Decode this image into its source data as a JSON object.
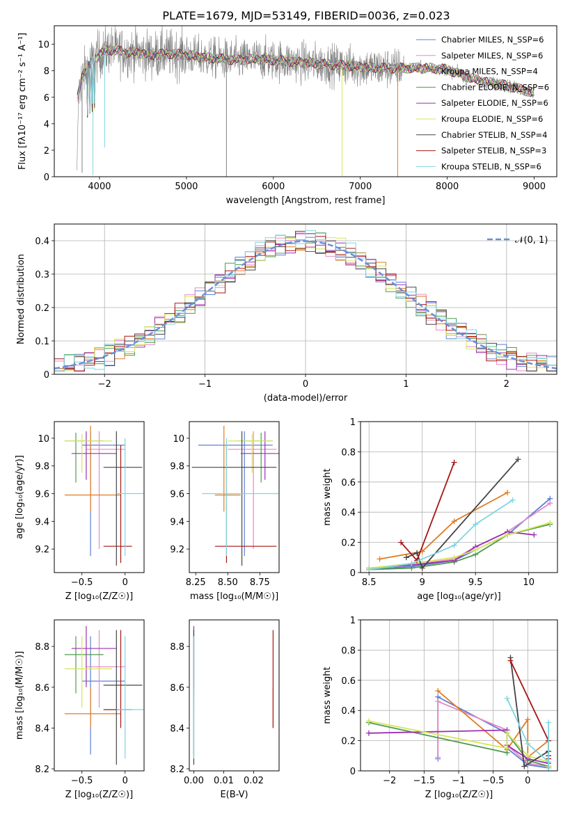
{
  "figure": {
    "title": "PLATE=1679, MJD=53149, FIBERID=0036, z=0.023"
  },
  "chart_data": [
    {
      "id": "spectrum",
      "type": "line",
      "xlabel": "wavelength [Angstrom, rest frame]",
      "ylabel": "Flux [fλ10⁻¹⁷ erg cm⁻² s⁻¹ A⁻¹]",
      "xlim": [
        3480,
        9260
      ],
      "ylim": [
        0,
        11.4
      ],
      "xticks": [
        4000,
        5000,
        6000,
        7000,
        8000,
        9000
      ],
      "yticks": [
        0,
        2,
        4,
        6,
        8,
        10
      ],
      "legend_position": "upper-right",
      "data_color": "#808080",
      "continuum": {
        "x": [
          3740,
          3800,
          3900,
          4000,
          4100,
          4200,
          4300,
          4400,
          4500,
          4600,
          4800,
          5000,
          5200,
          5400,
          5600,
          5800,
          6000,
          6200,
          6400,
          6600,
          6800,
          7000,
          7200,
          7400,
          7600,
          7800,
          8000,
          8200,
          8400,
          8600,
          8800,
          9000
        ],
        "y": [
          5.8,
          7.6,
          8.6,
          9.2,
          9.6,
          9.5,
          9.4,
          9.4,
          9.3,
          9.2,
          9.3,
          9.2,
          9.0,
          8.9,
          8.8,
          8.9,
          8.8,
          8.7,
          8.6,
          8.5,
          8.4,
          8.3,
          8.2,
          8.2,
          8.2,
          8.2,
          8.1,
          7.6,
          7.2,
          7.0,
          6.7,
          6.3
        ]
      },
      "models": [
        {
          "name": "Chabrier MILES, N_SSP=6",
          "color": "#5b7fd6"
        },
        {
          "name": "Salpeter MILES, N_SSP=6",
          "color": "#e58ac6"
        },
        {
          "name": "Kroupa MILES, N_SSP=4",
          "color": "#e07b20"
        },
        {
          "name": "Chabrier ELODIE, N_SSP=6",
          "color": "#4e9a4e"
        },
        {
          "name": "Salpeter ELODIE, N_SSP=6",
          "color": "#9b30b0"
        },
        {
          "name": "Kroupa ELODIE, N_SSP=6",
          "color": "#d6e65a"
        },
        {
          "name": "Chabrier STELIB, N_SSP=4",
          "color": "#444444"
        },
        {
          "name": "Salpeter STELIB, N_SSP=3",
          "color": "#a51515"
        },
        {
          "name": "Kroupa STELIB, N_SSP=6",
          "color": "#7fd6e0"
        }
      ]
    },
    {
      "id": "residuals",
      "type": "line",
      "xlabel": "(data-model)/error",
      "ylabel": "Normed distribution",
      "xlim": [
        -2.5,
        2.5
      ],
      "ylim": [
        0,
        0.45
      ],
      "xticks": [
        -2,
        -1,
        0,
        1,
        2
      ],
      "yticks": [
        0.0,
        0.1,
        0.2,
        0.3,
        0.4
      ],
      "grid": true,
      "legend": [
        {
          "name": "𝒩(0, 1)",
          "color": "#6a8fd8",
          "style": "dashed"
        }
      ],
      "bin_width": 0.1
    },
    {
      "id": "age-vs-z",
      "type": "scatter",
      "xlabel": "Z [log₁₀(Z/Z☉)]",
      "ylabel": "age  [log₁₀(age/yr)]",
      "xlim": [
        -0.82,
        0.22
      ],
      "ylim": [
        9.03,
        10.12
      ],
      "xticks": [
        -0.5,
        0.0
      ],
      "yticks": [
        9.2,
        9.4,
        9.6,
        9.8,
        10.0
      ],
      "points": [
        {
          "color": "#5b7fd6",
          "x": -0.4,
          "xlo": -0.5,
          "xhi": 0.0,
          "y": 9.95,
          "ylo": 9.15,
          "yhi": 10.05
        },
        {
          "color": "#e58ac6",
          "x": -0.3,
          "xlo": -0.45,
          "xhi": 0.0,
          "y": 9.92,
          "ylo": 9.2,
          "yhi": 10.05
        },
        {
          "color": "#e07b20",
          "x": -0.4,
          "xlo": -0.7,
          "xhi": -0.05,
          "y": 9.59,
          "ylo": 9.47,
          "yhi": 10.09
        },
        {
          "color": "#4e9a4e",
          "x": -0.57,
          "xlo": -0.7,
          "xhi": -0.25,
          "y": 9.98,
          "ylo": 9.68,
          "yhi": 10.04
        },
        {
          "color": "#9b30b0",
          "x": -0.45,
          "xlo": -0.62,
          "xhi": -0.1,
          "y": 9.89,
          "ylo": 9.7,
          "yhi": 10.05
        },
        {
          "color": "#d6e65a",
          "x": -0.5,
          "xlo": -0.7,
          "xhi": -0.15,
          "y": 9.98,
          "ylo": 9.75,
          "yhi": 10.03
        },
        {
          "color": "#444444",
          "x": -0.1,
          "xlo": -0.25,
          "xhi": 0.2,
          "y": 9.79,
          "ylo": 9.08,
          "yhi": 10.05
        },
        {
          "color": "#a51515",
          "x": -0.05,
          "xlo": -0.25,
          "xhi": 0.08,
          "y": 9.22,
          "ylo": 9.1,
          "yhi": 9.95
        },
        {
          "color": "#7fd6e0",
          "x": 0.0,
          "xlo": -0.1,
          "xhi": 0.22,
          "y": 9.6,
          "ylo": 9.15,
          "yhi": 10.0
        }
      ]
    },
    {
      "id": "age-vs-mass",
      "type": "scatter",
      "xlabel": "mass [log₁₀(M/M☉)]",
      "ylabel": "",
      "xlim": [
        8.2,
        8.9
      ],
      "ylim": [
        9.03,
        10.12
      ],
      "xticks": [
        8.25,
        8.5,
        8.75
      ],
      "xtick_labels": [
        "8.25",
        "8.50",
        "8.75"
      ],
      "yticks": [
        9.2,
        9.4,
        9.6,
        9.8,
        10.0
      ],
      "points": [
        {
          "color": "#5b7fd6",
          "x": 8.63,
          "xlo": 8.27,
          "xhi": 8.85,
          "y": 9.95,
          "ylo": 9.15,
          "yhi": 10.05
        },
        {
          "color": "#e58ac6",
          "x": 8.7,
          "xlo": 8.5,
          "xhi": 8.88,
          "y": 9.92,
          "ylo": 9.2,
          "yhi": 10.05
        },
        {
          "color": "#e07b20",
          "x": 8.47,
          "xlo": 8.4,
          "xhi": 8.6,
          "y": 9.59,
          "ylo": 9.47,
          "yhi": 10.09
        },
        {
          "color": "#4e9a4e",
          "x": 8.76,
          "xlo": 8.57,
          "xhi": 8.85,
          "y": 9.98,
          "ylo": 9.68,
          "yhi": 10.04
        },
        {
          "color": "#9b30b0",
          "x": 8.79,
          "xlo": 8.6,
          "xhi": 8.9,
          "y": 9.89,
          "ylo": 9.7,
          "yhi": 10.05
        },
        {
          "color": "#d6e65a",
          "x": 8.69,
          "xlo": 8.5,
          "xhi": 8.85,
          "y": 9.98,
          "ylo": 9.75,
          "yhi": 10.03
        },
        {
          "color": "#444444",
          "x": 8.61,
          "xlo": 8.22,
          "xhi": 8.88,
          "y": 9.79,
          "ylo": 9.08,
          "yhi": 10.05
        },
        {
          "color": "#a51515",
          "x": 8.49,
          "xlo": 8.4,
          "xhi": 8.88,
          "y": 9.22,
          "ylo": 9.1,
          "yhi": 9.95
        },
        {
          "color": "#7fd6e0",
          "x": 8.49,
          "xlo": 8.3,
          "xhi": 8.9,
          "y": 9.6,
          "ylo": 9.15,
          "yhi": 10.0
        }
      ]
    },
    {
      "id": "weight-vs-age",
      "type": "line",
      "xlabel": "age  [log₁₀(age/yr)]",
      "ylabel": "mass weight",
      "xlim": [
        8.42,
        10.27
      ],
      "ylim": [
        0.0,
        1.0
      ],
      "xticks": [
        8.5,
        9.0,
        9.5,
        10.0
      ],
      "yticks": [
        0.0,
        0.2,
        0.4,
        0.6,
        0.8,
        1.0
      ],
      "grid": true,
      "series": [
        {
          "color": "#5b7fd6",
          "x": [
            8.5,
            8.9,
            9.3,
            9.5,
            9.8,
            10.2
          ],
          "y": [
            0.02,
            0.04,
            0.08,
            0.15,
            0.25,
            0.49
          ]
        },
        {
          "color": "#e58ac6",
          "x": [
            8.5,
            8.9,
            9.3,
            9.5,
            9.8,
            10.2
          ],
          "y": [
            0.03,
            0.05,
            0.09,
            0.17,
            0.27,
            0.46
          ]
        },
        {
          "color": "#e07b20",
          "x": [
            8.6,
            9.0,
            9.3,
            9.8
          ],
          "y": [
            0.09,
            0.14,
            0.34,
            0.53
          ]
        },
        {
          "color": "#4e9a4e",
          "x": [
            8.5,
            8.9,
            9.3,
            9.5,
            9.8,
            10.2
          ],
          "y": [
            0.02,
            0.03,
            0.07,
            0.12,
            0.25,
            0.32
          ]
        },
        {
          "color": "#9b30b0",
          "x": [
            8.5,
            8.9,
            9.3,
            9.5,
            9.8,
            10.05
          ],
          "y": [
            0.03,
            0.05,
            0.08,
            0.17,
            0.27,
            0.25
          ]
        },
        {
          "color": "#d6e65a",
          "x": [
            8.5,
            8.9,
            9.3,
            9.5,
            9.8,
            10.2
          ],
          "y": [
            0.03,
            0.06,
            0.1,
            0.15,
            0.25,
            0.33
          ]
        },
        {
          "color": "#444444",
          "x": [
            8.85,
            8.95,
            9.0,
            9.9
          ],
          "y": [
            0.1,
            0.13,
            0.03,
            0.75
          ]
        },
        {
          "color": "#a51515",
          "x": [
            8.8,
            8.95,
            9.3
          ],
          "y": [
            0.2,
            0.08,
            0.73
          ]
        },
        {
          "color": "#7fd6e0",
          "x": [
            8.5,
            8.9,
            9.3,
            9.5,
            9.85
          ],
          "y": [
            0.02,
            0.06,
            0.18,
            0.32,
            0.48
          ]
        }
      ]
    },
    {
      "id": "mass-vs-z",
      "type": "scatter",
      "xlabel": "Z [log₁₀(Z/Z☉)]",
      "ylabel": "mass [log₁₀(M/M☉)]",
      "xlim": [
        -0.82,
        0.22
      ],
      "ylim": [
        8.19,
        8.93
      ],
      "xticks": [
        -0.5,
        0.0
      ],
      "yticks": [
        8.2,
        8.4,
        8.6,
        8.8
      ],
      "points": [
        {
          "color": "#5b7fd6",
          "x": -0.4,
          "xlo": -0.5,
          "xhi": 0.0,
          "y": 8.63,
          "ylo": 8.27,
          "yhi": 8.85
        },
        {
          "color": "#e58ac6",
          "x": -0.3,
          "xlo": -0.45,
          "xhi": 0.0,
          "y": 8.7,
          "ylo": 8.5,
          "yhi": 8.88
        },
        {
          "color": "#e07b20",
          "x": -0.4,
          "xlo": -0.7,
          "xhi": -0.05,
          "y": 8.47,
          "ylo": 8.4,
          "yhi": 8.6
        },
        {
          "color": "#4e9a4e",
          "x": -0.57,
          "xlo": -0.7,
          "xhi": -0.25,
          "y": 8.76,
          "ylo": 8.57,
          "yhi": 8.85
        },
        {
          "color": "#9b30b0",
          "x": -0.45,
          "xlo": -0.62,
          "xhi": -0.1,
          "y": 8.79,
          "ylo": 8.6,
          "yhi": 8.9
        },
        {
          "color": "#d6e65a",
          "x": -0.5,
          "xlo": -0.7,
          "xhi": -0.15,
          "y": 8.69,
          "ylo": 8.5,
          "yhi": 8.85
        },
        {
          "color": "#444444",
          "x": -0.1,
          "xlo": -0.25,
          "xhi": 0.2,
          "y": 8.61,
          "ylo": 8.22,
          "yhi": 8.88
        },
        {
          "color": "#a51515",
          "x": -0.05,
          "xlo": -0.25,
          "xhi": 0.08,
          "y": 8.49,
          "ylo": 8.4,
          "yhi": 8.88
        },
        {
          "color": "#7fd6e0",
          "x": 0.0,
          "xlo": -0.1,
          "xhi": 0.22,
          "y": 8.49,
          "ylo": 8.25,
          "yhi": 8.85
        }
      ]
    },
    {
      "id": "mass-vs-ebv",
      "type": "scatter",
      "xlabel": "E(B-V)",
      "ylabel": "",
      "xlim": [
        -0.0015,
        0.0285
      ],
      "ylim": [
        8.19,
        8.93
      ],
      "xticks": [
        0.0,
        0.01,
        0.02
      ],
      "xtick_labels": [
        "0.00",
        "0.01",
        "0.02"
      ],
      "yticks": [
        8.2,
        8.4,
        8.6,
        8.8
      ],
      "points": [
        {
          "color": "#5b7fd6",
          "x": 0.0,
          "y": 8.63,
          "ylo": 8.27,
          "yhi": 8.85
        },
        {
          "color": "#e58ac6",
          "x": 0.0,
          "y": 8.7,
          "ylo": 8.5,
          "yhi": 8.88
        },
        {
          "color": "#e07b20",
          "x": 0.0265,
          "y": 8.47,
          "ylo": 8.4,
          "yhi": 8.6
        },
        {
          "color": "#4e9a4e",
          "x": 0.0,
          "y": 8.76,
          "ylo": 8.57,
          "yhi": 8.85
        },
        {
          "color": "#9b30b0",
          "x": 0.0,
          "y": 8.79,
          "ylo": 8.6,
          "yhi": 8.9
        },
        {
          "color": "#d6e65a",
          "x": 0.0,
          "y": 8.69,
          "ylo": 8.5,
          "yhi": 8.85
        },
        {
          "color": "#444444",
          "x": 0.0,
          "y": 8.61,
          "ylo": 8.22,
          "yhi": 8.88
        },
        {
          "color": "#a51515",
          "x": 0.0265,
          "y": 8.49,
          "ylo": 8.4,
          "yhi": 8.88
        },
        {
          "color": "#7fd6e0",
          "x": 0.0,
          "y": 8.49,
          "ylo": 8.25,
          "yhi": 8.85
        }
      ]
    },
    {
      "id": "weight-vs-z",
      "type": "line",
      "xlabel": "Z [log₁₀(Z/Z☉)]",
      "ylabel": "mass weight",
      "xlim": [
        -2.42,
        0.43
      ],
      "ylim": [
        0.0,
        1.0
      ],
      "xticks": [
        -2.0,
        -1.5,
        -1.0,
        -0.5,
        0.0
      ],
      "yticks": [
        0.0,
        0.2,
        0.4,
        0.6,
        0.8,
        1.0
      ],
      "grid": true,
      "series": [
        {
          "color": "#5b7fd6",
          "x": [
            -1.3,
            -1.3,
            -0.3,
            -0.3,
            0.0,
            0.3,
            0.3
          ],
          "y": [
            0.08,
            0.49,
            0.25,
            0.15,
            0.04,
            0.02,
            0.03
          ]
        },
        {
          "color": "#e58ac6",
          "x": [
            -1.3,
            -1.3,
            -0.3,
            -0.3,
            0.0,
            0.3
          ],
          "y": [
            0.09,
            0.46,
            0.27,
            0.17,
            0.05,
            0.03
          ]
        },
        {
          "color": "#e07b20",
          "x": [
            -1.3,
            -0.3,
            0.0,
            0.0,
            0.3
          ],
          "y": [
            0.53,
            0.14,
            0.34,
            0.09,
            0.2
          ]
        },
        {
          "color": "#4e9a4e",
          "x": [
            -2.3,
            -0.3,
            -0.3,
            0.0,
            0.3,
            0.3
          ],
          "y": [
            0.32,
            0.12,
            0.25,
            0.07,
            0.03,
            0.02
          ]
        },
        {
          "color": "#9b30b0",
          "x": [
            -2.3,
            -0.3,
            -0.3,
            0.0,
            0.3,
            0.3
          ],
          "y": [
            0.25,
            0.27,
            0.17,
            0.08,
            0.05,
            0.03
          ]
        },
        {
          "color": "#d6e65a",
          "x": [
            -2.3,
            -0.3,
            -0.3,
            0.0,
            0.3,
            0.3
          ],
          "y": [
            0.33,
            0.15,
            0.25,
            0.1,
            0.06,
            0.03
          ]
        },
        {
          "color": "#444444",
          "x": [
            -0.25,
            -0.05,
            0.3,
            0.3
          ],
          "y": [
            0.75,
            0.03,
            0.13,
            0.1
          ]
        },
        {
          "color": "#a51515",
          "x": [
            -0.25,
            0.3,
            0.3
          ],
          "y": [
            0.73,
            0.2,
            0.08
          ]
        },
        {
          "color": "#7fd6e0",
          "x": [
            -0.3,
            0.0,
            0.3,
            0.3,
            0.3
          ],
          "y": [
            0.48,
            0.18,
            0.06,
            0.32,
            0.02
          ]
        }
      ]
    }
  ]
}
